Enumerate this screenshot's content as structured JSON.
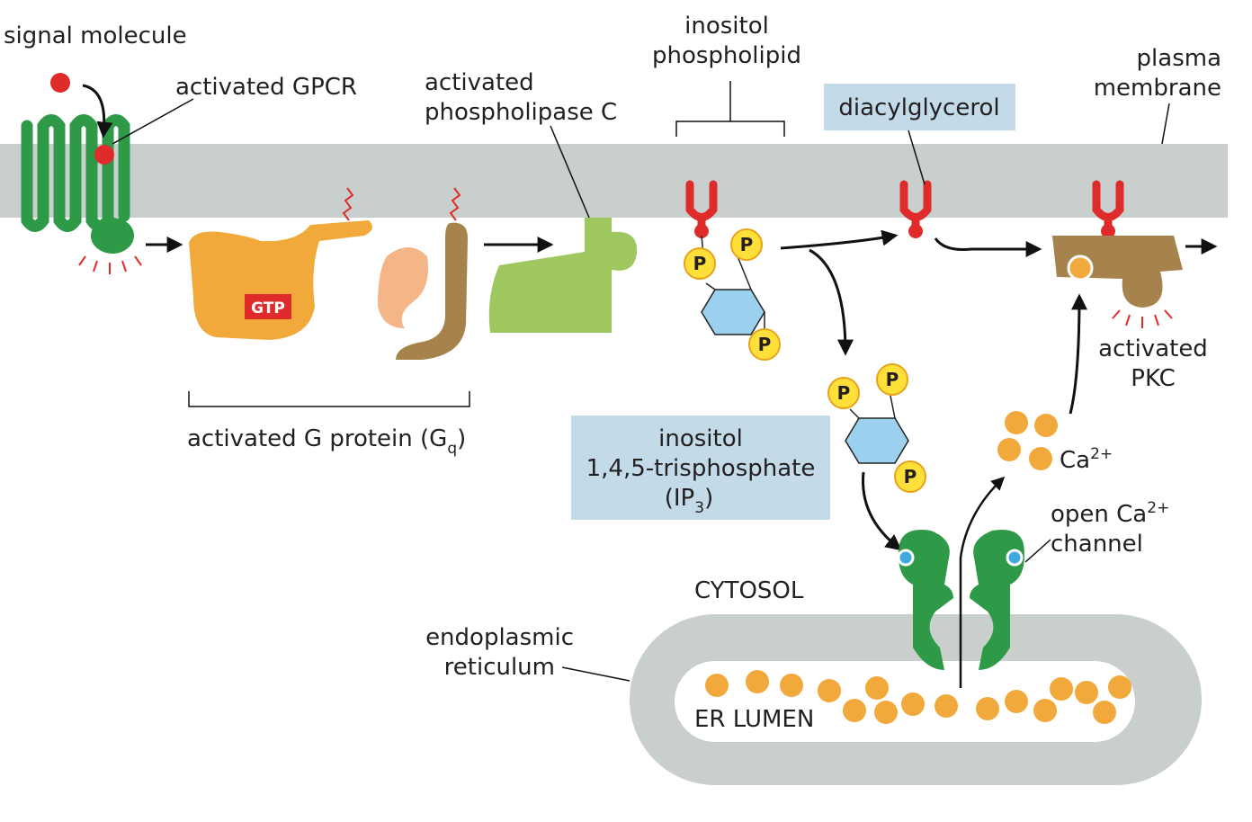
{
  "labels": {
    "signal_molecule": "signal molecule",
    "activated_gpcr": "activated GPCR",
    "phospholipase_c": [
      "activated",
      "phospholipase C"
    ],
    "inositol_phospholipid": [
      "inositol",
      "phospholipid"
    ],
    "diacylglycerol": "diacylglycerol",
    "plasma_membrane": [
      "plasma",
      "membrane"
    ],
    "gtp": "GTP",
    "g_protein": {
      "text": "activated G protein (G",
      "sub": "q",
      "end": ")"
    },
    "phosphate": "P",
    "activated_pkc": [
      "activated",
      "PKC"
    ],
    "ip3": {
      "lines": [
        "inositol",
        "1,4,5-trisphosphate"
      ],
      "last": "(IP",
      "sub": "3",
      "end": ")"
    },
    "calcium": {
      "text": "Ca",
      "sup": "2+"
    },
    "channel": {
      "line1": "open Ca",
      "sup": "2+",
      "line2": "channel"
    },
    "cytosol": "CYTOSOL",
    "er": [
      "endoplasmic",
      "reticulum"
    ],
    "er_lumen": "ER LUMEN"
  }
}
